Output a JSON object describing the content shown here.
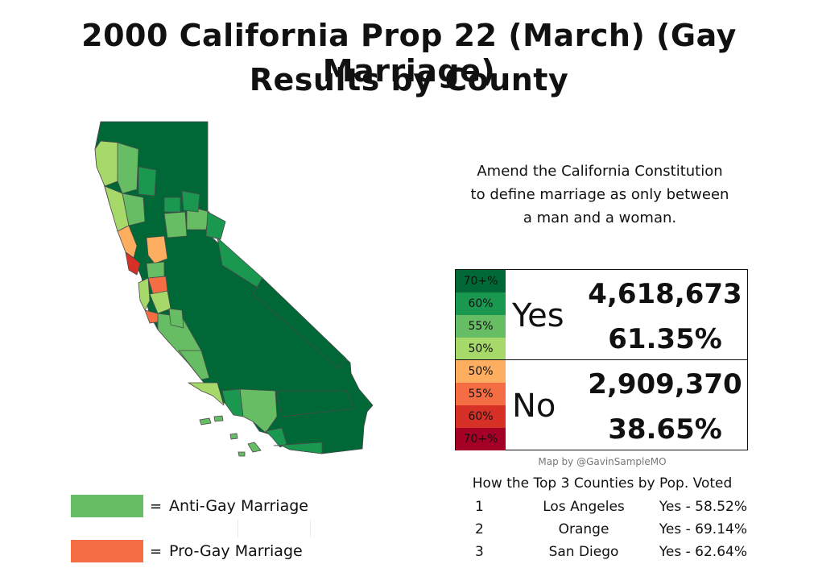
{
  "title": {
    "line1": "2000 California Prop 22 (March) (Gay Marriage)",
    "line2": "Results by County"
  },
  "description": {
    "line1": "Amend the California Constitution",
    "line2": "to define marriage as only between",
    "line3": "a man and a woman."
  },
  "scale": {
    "yes": [
      {
        "label": "70+%",
        "color": "#006837"
      },
      {
        "label": "60%",
        "color": "#1a9850"
      },
      {
        "label": "55%",
        "color": "#66bd63"
      },
      {
        "label": "50%",
        "color": "#a6d96a"
      }
    ],
    "no": [
      {
        "label": "50%",
        "color": "#fdae61"
      },
      {
        "label": "55%",
        "color": "#f46d43"
      },
      {
        "label": "60%",
        "color": "#d73027"
      },
      {
        "label": "70+%",
        "color": "#a50026"
      }
    ]
  },
  "results": {
    "yes": {
      "label": "Yes",
      "votes": "4,618,673",
      "pct": "61.35%"
    },
    "no": {
      "label": "No",
      "votes": "2,909,370",
      "pct": "38.65%"
    }
  },
  "credit": "Map by @GavinSampleMO",
  "top_counties": {
    "title": "How the Top 3 Counties by Pop. Voted",
    "rows": [
      {
        "rank": "1",
        "county": "Los Angeles",
        "result": "Yes - 58.52%"
      },
      {
        "rank": "2",
        "county": "Orange",
        "result": "Yes - 69.14%"
      },
      {
        "rank": "3",
        "county": "San Diego",
        "result": "Yes - 62.64%"
      }
    ]
  },
  "legend": {
    "anti": {
      "eq": "=",
      "label": "Anti-Gay Marriage",
      "color": "#66bd63"
    },
    "pro": {
      "eq": "=",
      "label": "Pro-Gay Marriage",
      "color": "#f46d43"
    }
  },
  "colors": {
    "border": "#4a4a4a",
    "map_dark": "#006837",
    "map_mid": "#1a9850",
    "map_light": "#66bd63",
    "map_pale": "#a6d96a",
    "map_orange": "#fdae61",
    "map_red_orange": "#f46d43",
    "map_red": "#d73027"
  }
}
